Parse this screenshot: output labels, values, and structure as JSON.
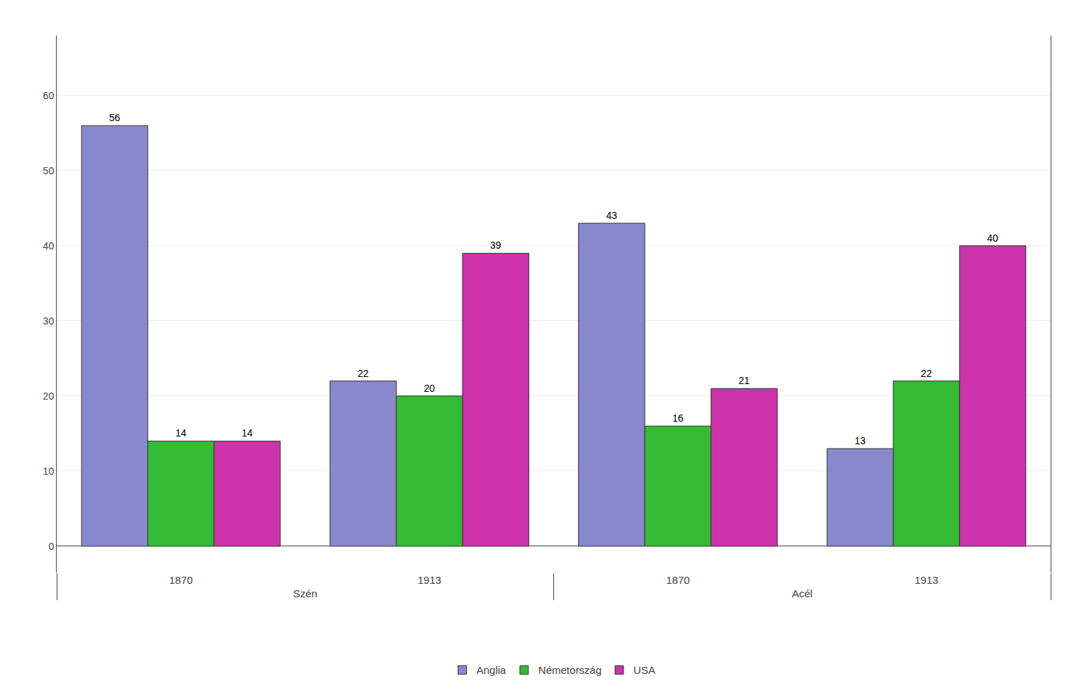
{
  "chart_data": {
    "type": "bar",
    "categories": [
      "1870",
      "1913",
      "1870",
      "1913"
    ],
    "category_groups": [
      "Szén",
      "Szén",
      "Acél",
      "Acél"
    ],
    "series": [
      {
        "name": "Anglia",
        "color": "#8888cc",
        "values": [
          56,
          22,
          43,
          13
        ]
      },
      {
        "name": "Németország",
        "color": "#33bb33",
        "values": [
          14,
          20,
          16,
          22
        ]
      },
      {
        "name": "USA",
        "color": "#cc33aa",
        "values": [
          14,
          39,
          21,
          40
        ]
      }
    ],
    "ylim": [
      -3.5,
      68
    ],
    "yticks": [
      0,
      10,
      20,
      30,
      40,
      50,
      60
    ],
    "grid": true,
    "legend": "bottom",
    "data_labels": true
  }
}
